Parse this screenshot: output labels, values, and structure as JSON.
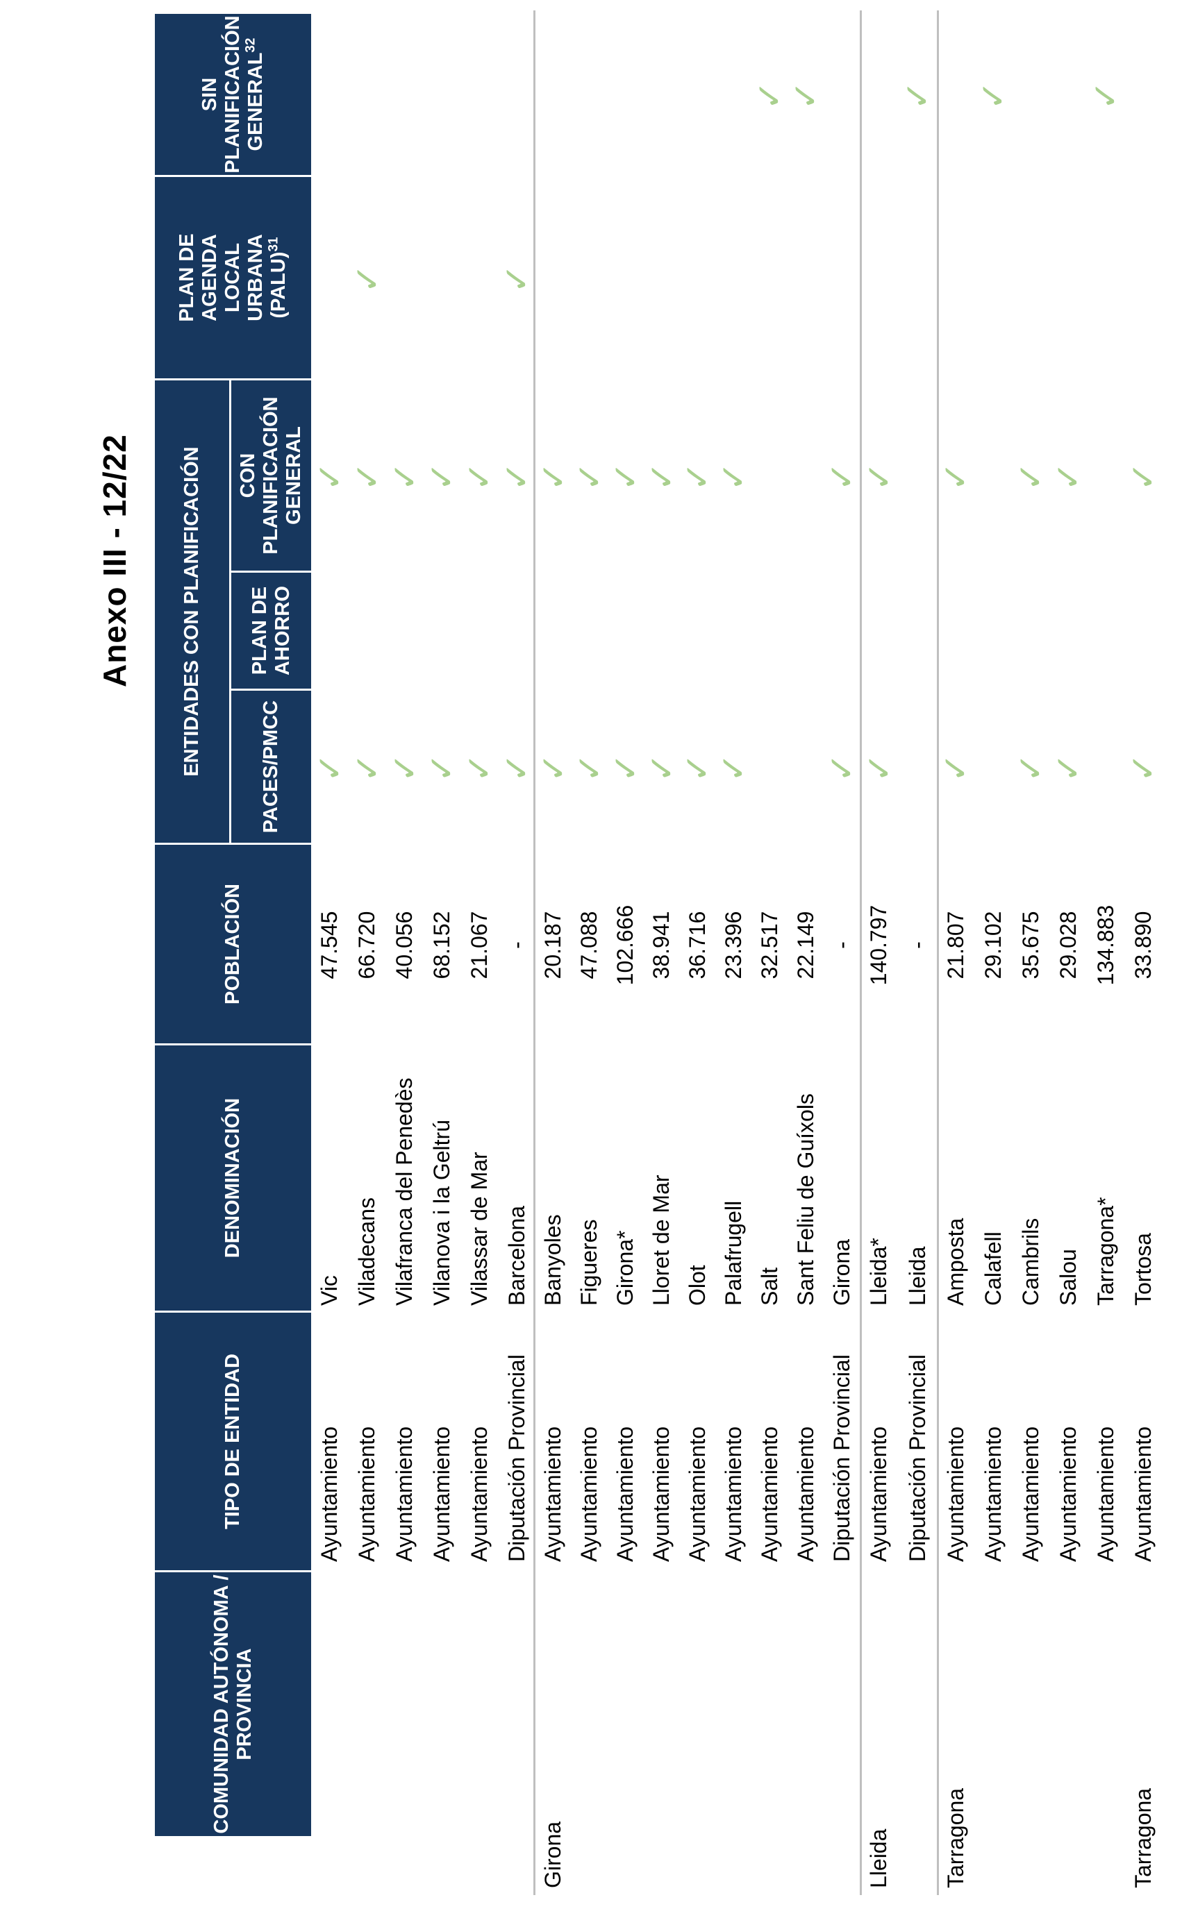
{
  "page": {
    "title": "Anexo III - 12/22"
  },
  "colors": {
    "header_navy": "#17375E",
    "check_green": "#A9D08E",
    "separator_gray": "#BFBFBF",
    "text_black": "#000000"
  },
  "icons": {
    "check": "✓"
  },
  "header": {
    "comunidad_lines": [
      "COMUNIDAD AUTÓNOMA /",
      "PROVINCIA"
    ],
    "tipo": "TIPO DE ENTIDAD",
    "denominacion": "DENOMINACIÓN",
    "poblacion": "POBLACIÓN",
    "entidades_group": "ENTIDADES CON PLANIFICACIÓN",
    "paces": "PACES/PMCC",
    "ahorro_lines": [
      "PLAN DE",
      "AHORRO"
    ],
    "con_lines": [
      "CON",
      "PLANIFICACIÓN",
      "GENERAL"
    ],
    "palu_lines": [
      "PLAN DE",
      "AGENDA",
      "LOCAL",
      "URBANA"
    ],
    "palu_last": "(PALU)",
    "palu_sup": "31",
    "sin_lines": [
      "SIN",
      "PLANIFICACIÓN"
    ],
    "sin_last": "GENERAL",
    "sin_sup": "32"
  },
  "rows": [
    {
      "g": 0,
      "comunidad": "",
      "tipo": "Ayuntamiento",
      "denominacion": "Vic",
      "poblacion": "47.545",
      "paces": true,
      "ahorro": false,
      "con": true,
      "palu": false,
      "sin": false
    },
    {
      "g": 0,
      "comunidad": "",
      "tipo": "Ayuntamiento",
      "denominacion": "Viladecans",
      "poblacion": "66.720",
      "paces": true,
      "ahorro": false,
      "con": true,
      "palu": true,
      "sin": false
    },
    {
      "g": 0,
      "comunidad": "",
      "tipo": "Ayuntamiento",
      "denominacion": "Vilafranca del Penedès",
      "poblacion": "40.056",
      "paces": true,
      "ahorro": false,
      "con": true,
      "palu": false,
      "sin": false
    },
    {
      "g": 0,
      "comunidad": "",
      "tipo": "Ayuntamiento",
      "denominacion": "Vilanova i la Geltrú",
      "poblacion": "68.152",
      "paces": true,
      "ahorro": false,
      "con": true,
      "palu": false,
      "sin": false
    },
    {
      "g": 0,
      "comunidad": "",
      "tipo": "Ayuntamiento",
      "denominacion": "Vilassar de Mar",
      "poblacion": "21.067",
      "paces": true,
      "ahorro": false,
      "con": true,
      "palu": false,
      "sin": false
    },
    {
      "g": 0,
      "comunidad": "",
      "tipo": "Diputación Provincial",
      "denominacion": "Barcelona",
      "poblacion": "-",
      "paces": true,
      "ahorro": false,
      "con": true,
      "palu": true,
      "sin": false
    },
    {
      "g": 1,
      "comunidad": "Girona",
      "tipo": "Ayuntamiento",
      "denominacion": "Banyoles",
      "poblacion": "20.187",
      "paces": true,
      "ahorro": false,
      "con": true,
      "palu": false,
      "sin": false
    },
    {
      "g": 1,
      "comunidad": "",
      "tipo": "Ayuntamiento",
      "denominacion": "Figueres",
      "poblacion": "47.088",
      "paces": true,
      "ahorro": false,
      "con": true,
      "palu": false,
      "sin": false
    },
    {
      "g": 1,
      "comunidad": "",
      "tipo": "Ayuntamiento",
      "denominacion": "Girona*",
      "poblacion": "102.666",
      "paces": true,
      "ahorro": false,
      "con": true,
      "palu": false,
      "sin": false
    },
    {
      "g": 1,
      "comunidad": "",
      "tipo": "Ayuntamiento",
      "denominacion": "Lloret de Mar",
      "poblacion": "38.941",
      "paces": true,
      "ahorro": false,
      "con": true,
      "palu": false,
      "sin": false
    },
    {
      "g": 1,
      "comunidad": "",
      "tipo": "Ayuntamiento",
      "denominacion": "Olot",
      "poblacion": "36.716",
      "paces": true,
      "ahorro": false,
      "con": true,
      "palu": false,
      "sin": false
    },
    {
      "g": 1,
      "comunidad": "",
      "tipo": "Ayuntamiento",
      "denominacion": "Palafrugell",
      "poblacion": "23.396",
      "paces": true,
      "ahorro": false,
      "con": true,
      "palu": false,
      "sin": false
    },
    {
      "g": 1,
      "comunidad": "",
      "tipo": "Ayuntamiento",
      "denominacion": "Salt",
      "poblacion": "32.517",
      "paces": false,
      "ahorro": false,
      "con": false,
      "palu": false,
      "sin": true
    },
    {
      "g": 1,
      "comunidad": "",
      "tipo": "Ayuntamiento",
      "denominacion": "Sant Feliu de Guíxols",
      "poblacion": "22.149",
      "paces": false,
      "ahorro": false,
      "con": false,
      "palu": false,
      "sin": true
    },
    {
      "g": 1,
      "comunidad": "",
      "tipo": "Diputación Provincial",
      "denominacion": "Girona",
      "poblacion": "-",
      "paces": true,
      "ahorro": false,
      "con": true,
      "palu": false,
      "sin": false
    },
    {
      "g": 2,
      "comunidad": "Lleida",
      "tipo": "Ayuntamiento",
      "denominacion": "Lleida*",
      "poblacion": "140.797",
      "paces": true,
      "ahorro": false,
      "con": true,
      "palu": false,
      "sin": false
    },
    {
      "g": 2,
      "comunidad": "",
      "tipo": "Diputación Provincial",
      "denominacion": "Lleida",
      "poblacion": "-",
      "paces": false,
      "ahorro": false,
      "con": false,
      "palu": false,
      "sin": true
    },
    {
      "g": 3,
      "comunidad": "Tarragona",
      "tipo": "Ayuntamiento",
      "denominacion": "Amposta",
      "poblacion": "21.807",
      "paces": true,
      "ahorro": false,
      "con": true,
      "palu": false,
      "sin": false
    },
    {
      "g": 3,
      "comunidad": "",
      "tipo": "Ayuntamiento",
      "denominacion": "Calafell",
      "poblacion": "29.102",
      "paces": false,
      "ahorro": false,
      "con": false,
      "palu": false,
      "sin": true
    },
    {
      "g": 3,
      "comunidad": "",
      "tipo": "Ayuntamiento",
      "denominacion": "Cambrils",
      "poblacion": "35.675",
      "paces": true,
      "ahorro": false,
      "con": true,
      "palu": false,
      "sin": false
    },
    {
      "g": 3,
      "comunidad": "",
      "tipo": "Ayuntamiento",
      "denominacion": "Salou",
      "poblacion": "29.028",
      "paces": true,
      "ahorro": false,
      "con": true,
      "palu": false,
      "sin": false
    },
    {
      "g": 3,
      "comunidad": "",
      "tipo": "Ayuntamiento",
      "denominacion": "Tarragona*",
      "poblacion": "134.883",
      "paces": false,
      "ahorro": false,
      "con": false,
      "palu": false,
      "sin": true
    },
    {
      "g": 3,
      "comunidad": "Tarragona",
      "tipo": "Ayuntamiento",
      "denominacion": "Tortosa",
      "poblacion": "33.890",
      "paces": true,
      "ahorro": false,
      "con": true,
      "palu": false,
      "sin": false
    }
  ]
}
